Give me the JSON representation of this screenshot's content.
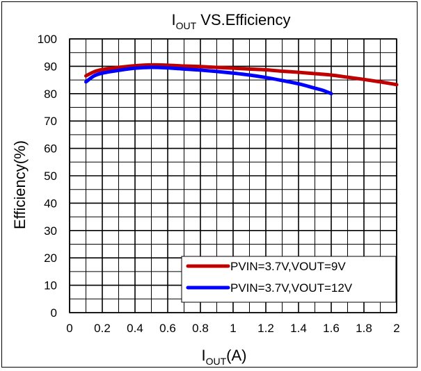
{
  "chart_data": {
    "type": "line",
    "title": {
      "main": "I",
      "sub": "OUT",
      "rest": " VS.Efficiency"
    },
    "xlabel": {
      "main": "I",
      "sub": "OUT",
      "rest": "(A)"
    },
    "ylabel": "Efficiency(%)",
    "xlim": [
      0,
      2
    ],
    "ylim": [
      0,
      100
    ],
    "xticks": [
      0,
      0.2,
      0.4,
      0.6,
      0.8,
      1,
      1.2,
      1.4,
      1.6,
      1.8,
      2
    ],
    "xtick_labels": [
      "0",
      "0.2",
      "0.4",
      "0.6",
      "0.8",
      "1",
      "1.2",
      "1.4",
      "1.6",
      "1.8",
      "2"
    ],
    "yticks": [
      0,
      10,
      20,
      30,
      40,
      50,
      60,
      70,
      80,
      90,
      100
    ],
    "ytick_labels": [
      "0",
      "10",
      "20",
      "30",
      "40",
      "50",
      "60",
      "70",
      "80",
      "90",
      "100"
    ],
    "grid": true,
    "minor_grid_x_step": 0.1,
    "minor_grid_y_step": 5,
    "legend_position": "bottom-right",
    "series": [
      {
        "name": "PVIN=3.7V,VOUT=9V",
        "color": "#c00000",
        "x": [
          0.1,
          0.15,
          0.2,
          0.3,
          0.4,
          0.5,
          0.6,
          0.7,
          0.8,
          0.9,
          1.0,
          1.1,
          1.2,
          1.3,
          1.4,
          1.5,
          1.6,
          1.7,
          1.8,
          1.9,
          2.0
        ],
        "y": [
          86.5,
          88,
          88.8,
          89.6,
          90.2,
          90.5,
          90.4,
          90.1,
          89.9,
          89.6,
          89.3,
          89.0,
          88.7,
          88.2,
          87.8,
          87.3,
          86.8,
          86.0,
          85.2,
          84.3,
          83.3
        ]
      },
      {
        "name": "PVIN=3.7V,VOUT=12V",
        "color": "#0000ff",
        "x": [
          0.1,
          0.15,
          0.2,
          0.3,
          0.4,
          0.5,
          0.6,
          0.7,
          0.8,
          0.9,
          1.0,
          1.1,
          1.2,
          1.3,
          1.4,
          1.5,
          1.55,
          1.6
        ],
        "y": [
          84.3,
          86.5,
          87.5,
          88.5,
          89.3,
          89.6,
          89.4,
          89.0,
          88.6,
          88.1,
          87.5,
          86.8,
          85.9,
          84.8,
          83.6,
          82.0,
          81.2,
          80.0
        ]
      }
    ]
  }
}
